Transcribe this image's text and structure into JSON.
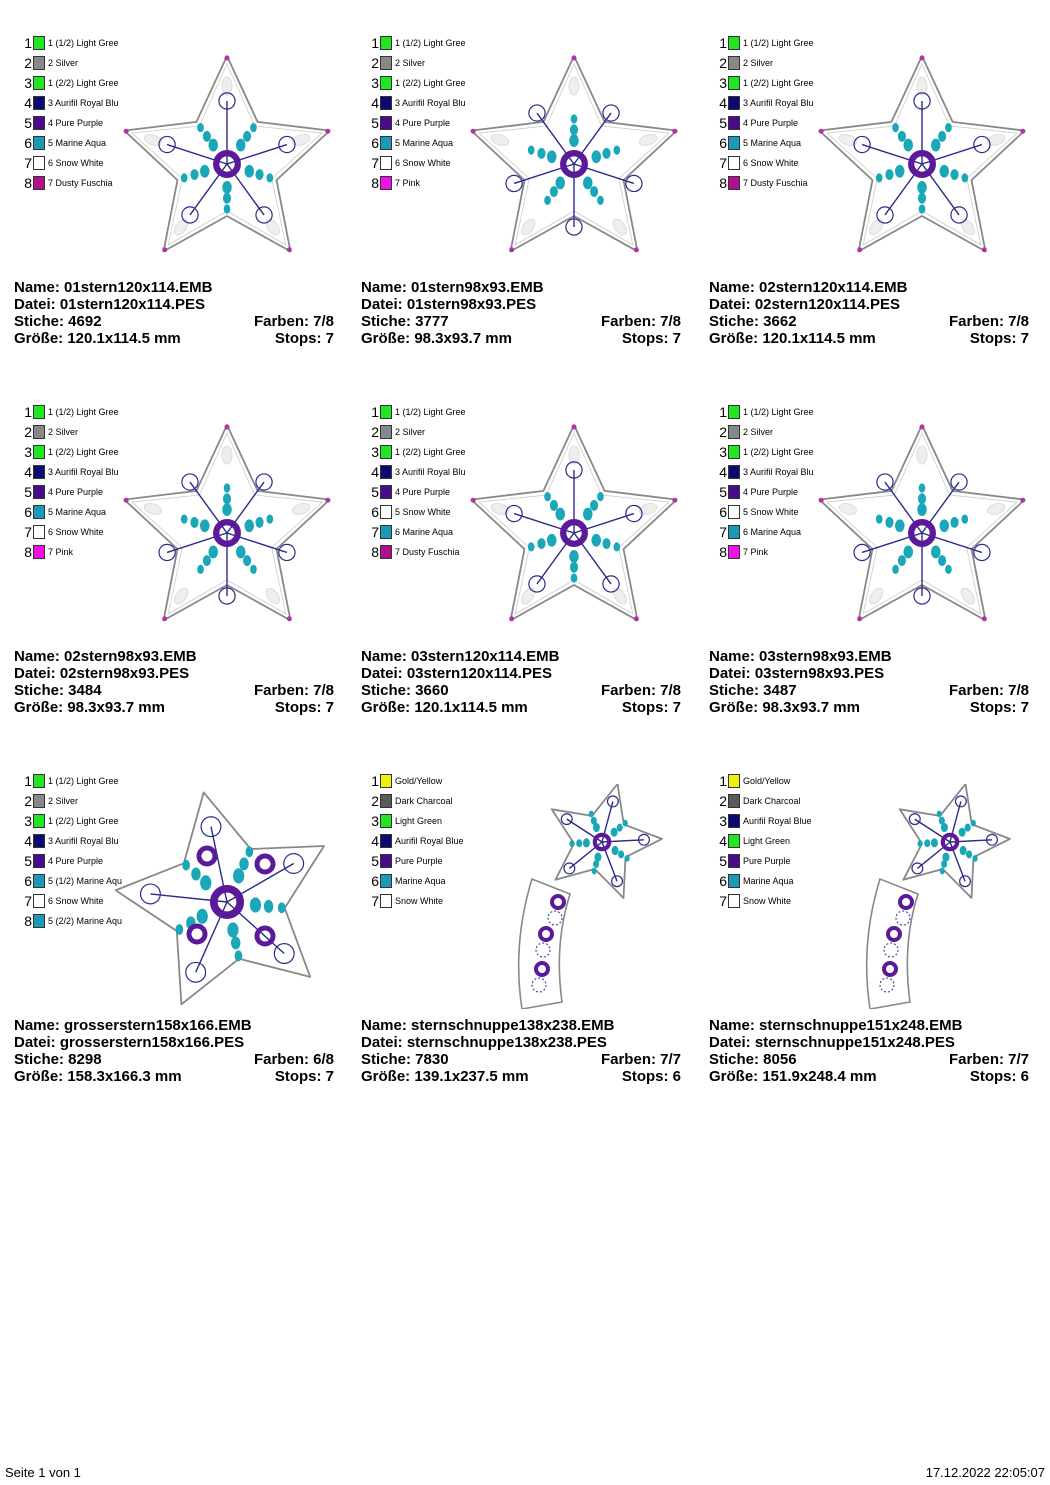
{
  "designs": [
    {
      "name_label": "Name: 01stern120x114.EMB",
      "file_label": "Datei: 01stern120x114.PES",
      "stitches_label": "Stiche: 4692",
      "colors_label": "Farben: 7/8",
      "size_label": "Größe: 120.1x114.5 mm",
      "stops_label": "Stops: 7",
      "shape": "star",
      "colors": [
        {
          "num": "1",
          "label": "1 (1/2) Light Gree",
          "hex": "#22e622"
        },
        {
          "num": "2",
          "label": "2 Silver",
          "hex": "#888888"
        },
        {
          "num": "3",
          "label": "1 (2/2) Light Gree",
          "hex": "#22e622"
        },
        {
          "num": "4",
          "label": "3 Aurifil Royal Blu",
          "hex": "#0a0a72"
        },
        {
          "num": "5",
          "label": "4 Pure Purple",
          "hex": "#4a0a8c"
        },
        {
          "num": "6",
          "label": "5 Marine Aqua",
          "hex": "#1a9ab8"
        },
        {
          "num": "7",
          "label": "6 Snow White",
          "hex": "#ffffff"
        },
        {
          "num": "8",
          "label": "7 Dusty Fuschia",
          "hex": "#b0108c"
        }
      ]
    },
    {
      "name_label": "Name: 01stern98x93.EMB",
      "file_label": "Datei: 01stern98x93.PES",
      "stitches_label": "Stiche: 3777",
      "colors_label": "Farben: 7/8",
      "size_label": "Größe: 98.3x93.7 mm",
      "stops_label": "Stops: 7",
      "shape": "star",
      "colors": [
        {
          "num": "1",
          "label": "1 (1/2) Light Gree",
          "hex": "#22e622"
        },
        {
          "num": "2",
          "label": "2 Silver",
          "hex": "#888888"
        },
        {
          "num": "3",
          "label": "1 (2/2) Light Gree",
          "hex": "#22e622"
        },
        {
          "num": "4",
          "label": "3 Aurifil Royal Blu",
          "hex": "#0a0a72"
        },
        {
          "num": "5",
          "label": "4 Pure Purple",
          "hex": "#4a0a8c"
        },
        {
          "num": "6",
          "label": "5 Marine Aqua",
          "hex": "#1a9ab8"
        },
        {
          "num": "7",
          "label": "6 Snow White",
          "hex": "#ffffff"
        },
        {
          "num": "8",
          "label": "7 Pink",
          "hex": "#f010e8"
        }
      ]
    },
    {
      "name_label": "Name: 02stern120x114.EMB",
      "file_label": "Datei: 02stern120x114.PES",
      "stitches_label": "Stiche: 3662",
      "colors_label": "Farben: 7/8",
      "size_label": "Größe: 120.1x114.5 mm",
      "stops_label": "Stops: 7",
      "shape": "star",
      "colors": [
        {
          "num": "1",
          "label": "1 (1/2) Light Gree",
          "hex": "#22e622"
        },
        {
          "num": "2",
          "label": "2 Silver",
          "hex": "#888888"
        },
        {
          "num": "3",
          "label": "1 (2/2) Light Gree",
          "hex": "#22e622"
        },
        {
          "num": "4",
          "label": "3 Aurifil Royal Blu",
          "hex": "#0a0a72"
        },
        {
          "num": "5",
          "label": "4 Pure Purple",
          "hex": "#4a0a8c"
        },
        {
          "num": "6",
          "label": "5 Marine Aqua",
          "hex": "#1a9ab8"
        },
        {
          "num": "7",
          "label": "6 Snow White",
          "hex": "#ffffff"
        },
        {
          "num": "8",
          "label": "7 Dusty Fuschia",
          "hex": "#b0108c"
        }
      ]
    },
    {
      "name_label": "Name: 02stern98x93.EMB",
      "file_label": "Datei: 02stern98x93.PES",
      "stitches_label": "Stiche: 3484",
      "colors_label": "Farben: 7/8",
      "size_label": "Größe: 98.3x93.7 mm",
      "stops_label": "Stops: 7",
      "shape": "star",
      "colors": [
        {
          "num": "1",
          "label": "1 (1/2) Light Gree",
          "hex": "#22e622"
        },
        {
          "num": "2",
          "label": "2 Silver",
          "hex": "#888888"
        },
        {
          "num": "3",
          "label": "1 (2/2) Light Gree",
          "hex": "#22e622"
        },
        {
          "num": "4",
          "label": "3 Aurifil Royal Blu",
          "hex": "#0a0a72"
        },
        {
          "num": "5",
          "label": "4 Pure Purple",
          "hex": "#4a0a8c"
        },
        {
          "num": "6",
          "label": "5 Marine Aqua",
          "hex": "#1a9ab8"
        },
        {
          "num": "7",
          "label": "6 Snow White",
          "hex": "#ffffff"
        },
        {
          "num": "8",
          "label": "7 Pink",
          "hex": "#f010e8"
        }
      ]
    },
    {
      "name_label": "Name: 03stern120x114.EMB",
      "file_label": "Datei: 03stern120x114.PES",
      "stitches_label": "Stiche: 3660",
      "colors_label": "Farben: 7/8",
      "size_label": "Größe: 120.1x114.5 mm",
      "stops_label": "Stops: 7",
      "shape": "star",
      "colors": [
        {
          "num": "1",
          "label": "1 (1/2) Light Gree",
          "hex": "#22e622"
        },
        {
          "num": "2",
          "label": "2 Silver",
          "hex": "#888888"
        },
        {
          "num": "3",
          "label": "1 (2/2) Light Gree",
          "hex": "#22e622"
        },
        {
          "num": "4",
          "label": "3 Aurifil Royal Blu",
          "hex": "#0a0a72"
        },
        {
          "num": "5",
          "label": "4 Pure Purple",
          "hex": "#4a0a8c"
        },
        {
          "num": "6",
          "label": "5 Snow White",
          "hex": "#ffffff"
        },
        {
          "num": "7",
          "label": "6 Marine Aqua",
          "hex": "#1a9ab8"
        },
        {
          "num": "8",
          "label": "7 Dusty Fuschia",
          "hex": "#b0108c"
        }
      ]
    },
    {
      "name_label": "Name: 03stern98x93.EMB",
      "file_label": "Datei: 03stern98x93.PES",
      "stitches_label": "Stiche: 3487",
      "colors_label": "Farben: 7/8",
      "size_label": "Größe: 98.3x93.7 mm",
      "stops_label": "Stops: 7",
      "shape": "star",
      "colors": [
        {
          "num": "1",
          "label": "1 (1/2) Light Gree",
          "hex": "#22e622"
        },
        {
          "num": "2",
          "label": "2 Silver",
          "hex": "#888888"
        },
        {
          "num": "3",
          "label": "1 (2/2) Light Gree",
          "hex": "#22e622"
        },
        {
          "num": "4",
          "label": "3 Aurifil Royal Blu",
          "hex": "#0a0a72"
        },
        {
          "num": "5",
          "label": "4 Pure Purple",
          "hex": "#4a0a8c"
        },
        {
          "num": "6",
          "label": "5 Snow White",
          "hex": "#ffffff"
        },
        {
          "num": "7",
          "label": "6 Marine Aqua",
          "hex": "#1a9ab8"
        },
        {
          "num": "8",
          "label": "7 Pink",
          "hex": "#f010e8"
        }
      ]
    },
    {
      "name_label": "Name: grosserstern158x166.EMB",
      "file_label": "Datei: grosserstern158x166.PES",
      "stitches_label": "Stiche: 8298",
      "colors_label": "Farben: 6/8",
      "size_label": "Größe: 158.3x166.3 mm",
      "stops_label": "Stops: 7",
      "shape": "bigstar",
      "colors": [
        {
          "num": "1",
          "label": "1 (1/2) Light Gree",
          "hex": "#22e622"
        },
        {
          "num": "2",
          "label": "2 Silver",
          "hex": "#888888"
        },
        {
          "num": "3",
          "label": "1 (2/2) Light Gree",
          "hex": "#22e622"
        },
        {
          "num": "4",
          "label": "3 Aurifil Royal Blu",
          "hex": "#0a0a72"
        },
        {
          "num": "5",
          "label": "4 Pure Purple",
          "hex": "#4a0a8c"
        },
        {
          "num": "6",
          "label": "5 (1/2) Marine Aqu",
          "hex": "#1a9ab8"
        },
        {
          "num": "7",
          "label": "6 Snow White",
          "hex": "#ffffff"
        },
        {
          "num": "8",
          "label": "5 (2/2) Marine Aqu",
          "hex": "#1a9ab8"
        }
      ]
    },
    {
      "name_label": "Name: sternschnuppe138x238.EMB",
      "file_label": "Datei: sternschnuppe138x238.PES",
      "stitches_label": "Stiche: 7830",
      "colors_label": "Farben: 7/7",
      "size_label": "Größe: 139.1x237.5 mm",
      "stops_label": "Stops: 6",
      "shape": "shooting",
      "colors": [
        {
          "num": "1",
          "label": "Gold/Yellow",
          "hex": "#f0f010"
        },
        {
          "num": "2",
          "label": "Dark Charcoal",
          "hex": "#5a5a5a"
        },
        {
          "num": "3",
          "label": "Light Green",
          "hex": "#22e622"
        },
        {
          "num": "4",
          "label": "Aurifil Royal Blue",
          "hex": "#0a0a72"
        },
        {
          "num": "5",
          "label": "Pure Purple",
          "hex": "#4a0a8c"
        },
        {
          "num": "6",
          "label": "Marine Aqua",
          "hex": "#1a9ab8"
        },
        {
          "num": "7",
          "label": "Snow White",
          "hex": "#ffffff"
        }
      ]
    },
    {
      "name_label": "Name: sternschnuppe151x248.EMB",
      "file_label": "Datei: sternschnuppe151x248.PES",
      "stitches_label": "Stiche: 8056",
      "colors_label": "Farben: 7/7",
      "size_label": "Größe: 151.9x248.4 mm",
      "stops_label": "Stops: 6",
      "shape": "shooting",
      "colors": [
        {
          "num": "1",
          "label": "Gold/Yellow",
          "hex": "#f0f010"
        },
        {
          "num": "2",
          "label": "Dark Charcoal",
          "hex": "#5a5a5a"
        },
        {
          "num": "3",
          "label": "Aurifil Royal Blue",
          "hex": "#0a0a72"
        },
        {
          "num": "4",
          "label": "Light Green",
          "hex": "#22e622"
        },
        {
          "num": "5",
          "label": "Pure Purple",
          "hex": "#4a0a8c"
        },
        {
          "num": "6",
          "label": "Marine Aqua",
          "hex": "#1a9ab8"
        },
        {
          "num": "7",
          "label": "Snow White",
          "hex": "#ffffff"
        }
      ]
    }
  ],
  "footer": {
    "page_label": "Seite 1 von 1",
    "timestamp": "17.12.2022 22:05:07"
  }
}
